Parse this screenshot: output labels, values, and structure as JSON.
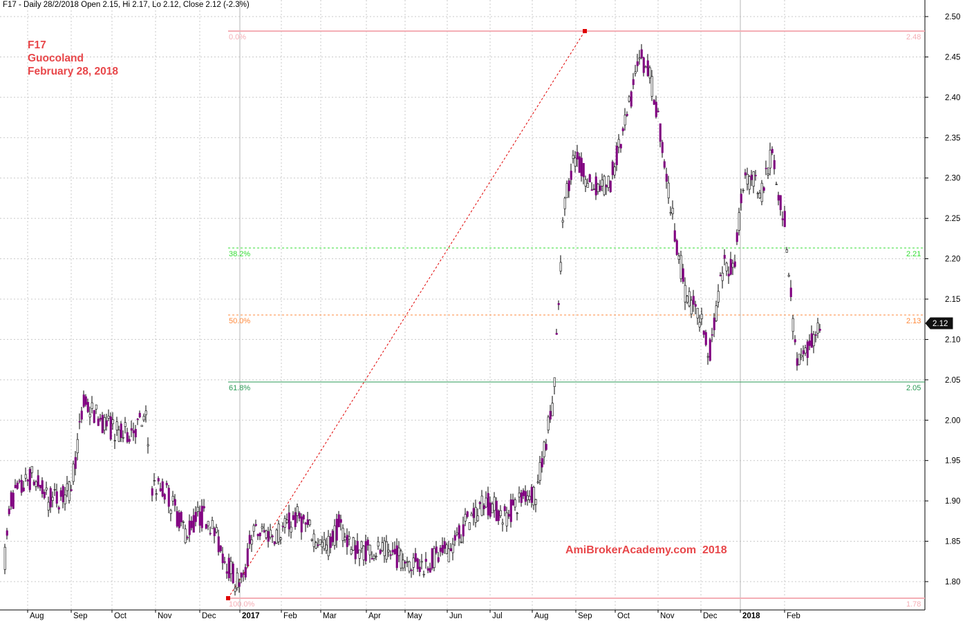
{
  "header": "F17 - Daily 28/2/2018 Open 2.15, Hi 2.17, Lo 2.12, Close 2.12 (-2.3%)",
  "info": {
    "ticker": "F17",
    "company": "Guocoland",
    "date": "February 28, 2018"
  },
  "watermark": "AmiBrokerAcademy.com  2018",
  "last_price_label": "2.12",
  "colors": {
    "candle": "#800080",
    "wick": "#000000",
    "swing_line": "#e00000",
    "fib_0": "#f4aeb5",
    "fib_38": "#33dd33",
    "fib_50": "#ff8a3c",
    "fib_62": "#2a9a55",
    "fib_100": "#f4aeb5",
    "grid": "#c8c8c8",
    "info_text": "#e8474a"
  },
  "chart_data": {
    "type": "candlestick",
    "title": "F17 - Daily 28/2/2018 Open 2.15, Hi 2.17, Lo 2.12, Close 2.12 (-2.3%)",
    "ylim": [
      1.77,
      2.51
    ],
    "y_ticks": [
      "1.80",
      "1.85",
      "1.90",
      "1.95",
      "2.00",
      "2.05",
      "2.10",
      "2.15",
      "2.20",
      "2.25",
      "2.30",
      "2.35",
      "2.40",
      "2.45",
      "2.50"
    ],
    "x_tick_labels": [
      "Aug",
      "Sep",
      "Oct",
      "Nov",
      "Dec",
      "2017",
      "Feb",
      "Mar",
      "Apr",
      "May",
      "Jun",
      "Jul",
      "Aug",
      "Sep",
      "Oct",
      "Nov",
      "Dec",
      "2018",
      "Feb"
    ],
    "bold_ticks": [
      "2017",
      "2018"
    ],
    "grid": true,
    "fibonacci": [
      {
        "level": "0.0%",
        "price": "2.48"
      },
      {
        "level": "38.2%",
        "price": "2.21"
      },
      {
        "level": "50.0%",
        "price": "2.13"
      },
      {
        "level": "61.8%",
        "price": "2.05"
      },
      {
        "level": "100.0%",
        "price": "1.78"
      }
    ],
    "swing": {
      "low": 1.78,
      "high": 2.48
    },
    "price_path": [
      [
        "Jul 2016",
        1.83
      ],
      [
        "Jul 2016",
        1.9
      ],
      [
        "Aug",
        1.93
      ],
      [
        "Aug",
        1.9
      ],
      [
        "Aug",
        1.91
      ],
      [
        "Sep",
        2.02
      ],
      [
        "Sep",
        2.0
      ],
      [
        "Oct",
        1.98
      ],
      [
        "Oct",
        2.0
      ],
      [
        "Nov",
        1.92
      ],
      [
        "Nov",
        1.91
      ],
      [
        "Nov",
        1.86
      ],
      [
        "Dec",
        1.88
      ],
      [
        "Dec",
        1.88
      ],
      [
        "Dec",
        1.84
      ],
      [
        "Dec",
        1.8
      ],
      [
        "Jan 2017",
        1.8
      ],
      [
        "Jan 2017",
        1.86
      ],
      [
        "Feb",
        1.86
      ],
      [
        "Feb",
        1.88
      ],
      [
        "Mar",
        1.84
      ],
      [
        "Mar",
        1.87
      ],
      [
        "Mar",
        1.84
      ],
      [
        "Apr",
        1.84
      ],
      [
        "Apr",
        1.83
      ],
      [
        "May",
        1.82
      ],
      [
        "May",
        1.83
      ],
      [
        "Jun",
        1.84
      ],
      [
        "Jun",
        1.88
      ],
      [
        "Jul",
        1.9
      ],
      [
        "Jul",
        1.88
      ],
      [
        "Jul",
        1.91
      ],
      [
        "Aug",
        1.91
      ],
      [
        "Aug",
        2.03
      ],
      [
        "Aug",
        2.27
      ],
      [
        "Sep",
        2.33
      ],
      [
        "Sep",
        2.29
      ],
      [
        "Sep",
        2.29
      ],
      [
        "Oct",
        2.37
      ],
      [
        "Oct",
        2.45
      ],
      [
        "Oct",
        2.44
      ],
      [
        "Nov",
        2.38
      ],
      [
        "Nov",
        2.26
      ],
      [
        "Nov",
        2.16
      ],
      [
        "Nov",
        2.12
      ],
      [
        "Dec",
        2.08
      ],
      [
        "Dec",
        2.19
      ],
      [
        "Dec",
        2.19
      ],
      [
        "Jan 2018",
        2.3
      ],
      [
        "Jan 2018",
        2.3
      ],
      [
        "Jan 2018",
        2.28
      ],
      [
        "Jan 2018",
        2.33
      ],
      [
        "Jan 2018",
        2.24
      ],
      [
        "Feb",
        2.08
      ],
      [
        "Feb",
        2.07
      ],
      [
        "Feb",
        2.12
      ]
    ]
  }
}
